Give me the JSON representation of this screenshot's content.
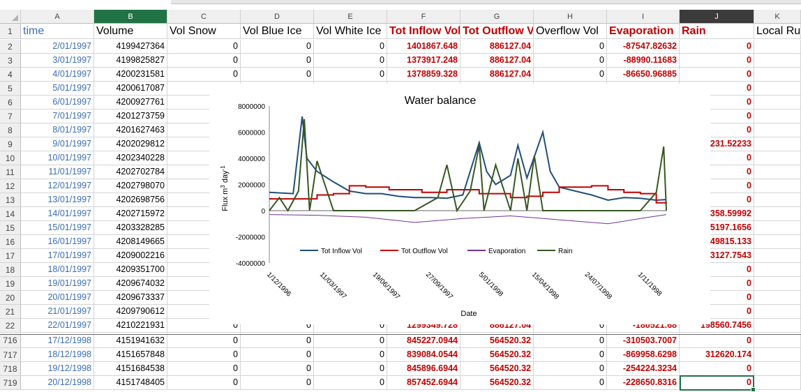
{
  "columns": [
    "A",
    "B",
    "C",
    "D",
    "E",
    "F",
    "G",
    "H",
    "I",
    "J",
    "K"
  ],
  "selected_column": "J",
  "header_row": {
    "row": "1",
    "cells": [
      "time",
      "Volume",
      "Vol Snow",
      "Vol Blue Ice",
      "Vol White Ice",
      "Tot Inflow Vol",
      "Tot Outflow Vol",
      "Overflow Vol",
      "Evaporation",
      "Rain",
      "Local Ru"
    ]
  },
  "rows": [
    {
      "row": "2",
      "cells": [
        "2/01/1997",
        "4199427364",
        "0",
        "0",
        "0",
        "1401867.648",
        "886127.04",
        "0",
        "-87547.82632",
        "0",
        ""
      ]
    },
    {
      "row": "3",
      "cells": [
        "3/01/1997",
        "4199825827",
        "0",
        "0",
        "0",
        "1373917.248",
        "886127.04",
        "0",
        "-88990.11683",
        "0",
        ""
      ]
    },
    {
      "row": "4",
      "cells": [
        "4/01/1997",
        "4200231581",
        "0",
        "0",
        "0",
        "1378859.328",
        "886127.04",
        "0",
        "-86650.96885",
        "0",
        ""
      ]
    },
    {
      "row": "5",
      "cells": [
        "5/01/1997",
        "4200617087",
        "",
        "",
        "",
        "",
        "",
        "",
        "",
        "0",
        ""
      ]
    },
    {
      "row": "6",
      "cells": [
        "6/01/1997",
        "4200927761",
        "",
        "",
        "",
        "",
        "",
        "",
        "",
        "0",
        ""
      ]
    },
    {
      "row": "7",
      "cells": [
        "7/01/1997",
        "4201273759",
        "",
        "",
        "",
        "",
        "",
        "",
        "",
        "0",
        ""
      ]
    },
    {
      "row": "8",
      "cells": [
        "8/01/1997",
        "4201627463",
        "",
        "",
        "",
        "",
        "",
        "",
        "",
        "0",
        ""
      ]
    },
    {
      "row": "9",
      "cells": [
        "9/01/1997",
        "4202029812",
        "",
        "",
        "",
        "",
        "",
        "",
        "",
        "231.52233",
        ""
      ]
    },
    {
      "row": "10",
      "cells": [
        "10/01/1997",
        "4202340228",
        "",
        "",
        "",
        "",
        "",
        "",
        "",
        "0",
        ""
      ]
    },
    {
      "row": "11",
      "cells": [
        "11/01/1997",
        "4202702784",
        "",
        "",
        "",
        "",
        "",
        "",
        "",
        "0",
        ""
      ]
    },
    {
      "row": "12",
      "cells": [
        "12/01/1997",
        "4202798070",
        "",
        "",
        "",
        "",
        "",
        "",
        "",
        "0",
        ""
      ]
    },
    {
      "row": "13",
      "cells": [
        "13/01/1997",
        "4202698756",
        "",
        "",
        "",
        "",
        "",
        "",
        "",
        "0",
        ""
      ]
    },
    {
      "row": "14",
      "cells": [
        "14/01/1997",
        "4202715972",
        "",
        "",
        "",
        "",
        "",
        "",
        "",
        "358.59992",
        ""
      ]
    },
    {
      "row": "15",
      "cells": [
        "15/01/1997",
        "4203328285",
        "",
        "",
        "",
        "",
        "",
        "",
        "",
        "5197.1656",
        ""
      ]
    },
    {
      "row": "16",
      "cells": [
        "16/01/1997",
        "4208149665",
        "",
        "",
        "",
        "",
        "",
        "",
        "",
        "49815.133",
        ""
      ]
    },
    {
      "row": "17",
      "cells": [
        "17/01/1997",
        "4209002216",
        "",
        "",
        "",
        "",
        "",
        "",
        "",
        "3127.7543",
        ""
      ]
    },
    {
      "row": "18",
      "cells": [
        "18/01/1997",
        "4209351700",
        "",
        "",
        "",
        "",
        "",
        "",
        "",
        "0",
        ""
      ]
    },
    {
      "row": "19",
      "cells": [
        "19/01/1997",
        "4209674032",
        "",
        "",
        "",
        "",
        "",
        "",
        "",
        "0",
        ""
      ]
    },
    {
      "row": "20",
      "cells": [
        "20/01/1997",
        "4209673337",
        "",
        "",
        "",
        "",
        "",
        "",
        "",
        "0",
        ""
      ]
    },
    {
      "row": "21",
      "cells": [
        "21/01/1997",
        "4209790612",
        "",
        "",
        "",
        "",
        "",
        "",
        "",
        "0",
        ""
      ]
    },
    {
      "row": "22",
      "cells": [
        "22/01/1997",
        "4210221931",
        "0",
        "0",
        "0",
        "1299349.728",
        "886127.04",
        "0",
        "-180521.68",
        "198560.7456",
        ""
      ]
    },
    {
      "row": "716",
      "cells": [
        "17/12/1998",
        "4151941632",
        "0",
        "0",
        "0",
        "845227.0944",
        "564520.32",
        "0",
        "-310503.7007",
        "0",
        ""
      ]
    },
    {
      "row": "717",
      "cells": [
        "18/12/1998",
        "4151657848",
        "0",
        "0",
        "0",
        "839084.0544",
        "564520.32",
        "0",
        "-869958.6298",
        "312620.174",
        ""
      ]
    },
    {
      "row": "718",
      "cells": [
        "19/12/1998",
        "4151684538",
        "0",
        "0",
        "0",
        "845896.6944",
        "564520.32",
        "0",
        "-254224.3234",
        "0",
        ""
      ]
    },
    {
      "row": "719",
      "cells": [
        "20/12/1998",
        "4151748405",
        "0",
        "0",
        "0",
        "857452.6944",
        "564520.32",
        "0",
        "-228650.8316",
        "0",
        ""
      ]
    }
  ],
  "chart": {
    "title": "Water balance",
    "ylabel": "Flux m",
    "ylabel_sup": "3",
    "ylabel_rest": " day",
    "ylabel_sup2": "-1",
    "xlabel": "Date",
    "yticks": [
      "8000000",
      "6000000",
      "4000000",
      "2000000",
      "0",
      "-2000000",
      "-4000000"
    ],
    "xticks": [
      "1/12/1996",
      "11/03/1997",
      "19/06/1997",
      "27/09/1997",
      "5/01/1998",
      "15/04/1998",
      "24/07/1998",
      "1/11/1998"
    ],
    "legend": [
      "Tot Inflow Vol",
      "Tot Outflow Vol",
      "Evaporation",
      "Rain"
    ]
  },
  "chart_data": {
    "type": "line",
    "title": "Water balance",
    "xlabel": "Date",
    "ylabel": "Flux m3 day-1",
    "ylim": [
      -4000000,
      8000000
    ],
    "xlim": [
      "1/12/1996",
      "20/12/1998"
    ],
    "legend_position": "bottom",
    "series": [
      {
        "name": "Tot Inflow Vol",
        "color": "#1f4e79",
        "x": [
          "1/12/1996",
          "15/01/1997",
          "1/02/1997",
          "10/02/1997",
          "1/03/1997",
          "1/04/1997",
          "1/05/1997",
          "1/06/1997",
          "1/07/1997",
          "1/08/1997",
          "1/09/1997",
          "1/10/1997",
          "1/11/1997",
          "1/12/1997",
          "1/01/1998",
          "15/01/1998",
          "1/02/1998",
          "1/03/1998",
          "15/03/1998",
          "1/04/1998",
          "1/05/1998",
          "15/05/1998",
          "1/06/1998",
          "1/07/1998",
          "1/08/1998",
          "1/09/1998",
          "1/10/1998",
          "1/11/1998",
          "1/12/1998",
          "20/12/1998"
        ],
        "y": [
          1400000,
          1300000,
          7200000,
          4000000,
          3000000,
          2200000,
          1500000,
          1300000,
          1300000,
          1100000,
          1000000,
          1000000,
          950000,
          1200000,
          5200000,
          3000000,
          2000000,
          2700000,
          5000000,
          2500000,
          6000000,
          3000000,
          1800000,
          1500000,
          1200000,
          800000,
          1000000,
          950000,
          800000,
          850000
        ]
      },
      {
        "name": "Tot Outflow Vol",
        "color": "#c00000",
        "x": [
          "1/12/1996",
          "15/01/1997",
          "1/03/1997",
          "1/04/1997",
          "1/05/1997",
          "1/06/1997",
          "15/07/1997",
          "15/09/1997",
          "1/11/1997",
          "1/01/1998",
          "1/03/1998",
          "1/04/1998",
          "1/05/1998",
          "1/06/1998",
          "1/08/1998",
          "1/09/1998",
          "1/10/1998",
          "1/11/1998",
          "1/12/1998",
          "20/12/1998"
        ],
        "y": [
          900000,
          900000,
          1200000,
          1300000,
          1900000,
          1800000,
          1600000,
          1400000,
          1600000,
          1300000,
          1000000,
          1100000,
          1400000,
          1800000,
          1900000,
          1600000,
          1400000,
          1300000,
          600000,
          560000
        ]
      },
      {
        "name": "Evaporation",
        "color": "#7030a0",
        "x": [
          "1/12/1996",
          "1/03/1997",
          "1/06/1997",
          "1/09/1997",
          "1/12/1997",
          "1/03/1998",
          "1/06/1998",
          "1/09/1998",
          "1/11/1998",
          "20/12/1998"
        ],
        "y": [
          -300000,
          -350000,
          -500000,
          -900000,
          -600000,
          -400000,
          -700000,
          -1000000,
          -600000,
          -300000
        ]
      },
      {
        "name": "Rain",
        "color": "#375623",
        "x": [
          "1/12/1996",
          "20/12/1996",
          "5/01/1997",
          "25/01/1997",
          "5/02/1997",
          "15/02/1997",
          "1/03/1997",
          "1/04/1997",
          "1/05/1997",
          "1/07/1997",
          "1/09/1997",
          "15/10/1997",
          "1/11/1997",
          "20/11/1997",
          "15/12/1997",
          "1/01/1998",
          "10/01/1998",
          "1/02/1998",
          "1/03/1998",
          "15/03/1998",
          "1/04/1998",
          "15/04/1998",
          "1/05/1998",
          "1/06/1998",
          "1/08/1998",
          "1/10/1998",
          "1/11/1998",
          "1/12/1998",
          "15/12/1998",
          "20/12/1998"
        ],
        "y": [
          0,
          1000000,
          0,
          1500000,
          7000000,
          0,
          3800000,
          0,
          0,
          0,
          0,
          1000000,
          3500000,
          0,
          1500000,
          5000000,
          0,
          3500000,
          0,
          4000000,
          0,
          4200000,
          0,
          0,
          0,
          0,
          0,
          1400000,
          4900000,
          0
        ]
      }
    ]
  }
}
